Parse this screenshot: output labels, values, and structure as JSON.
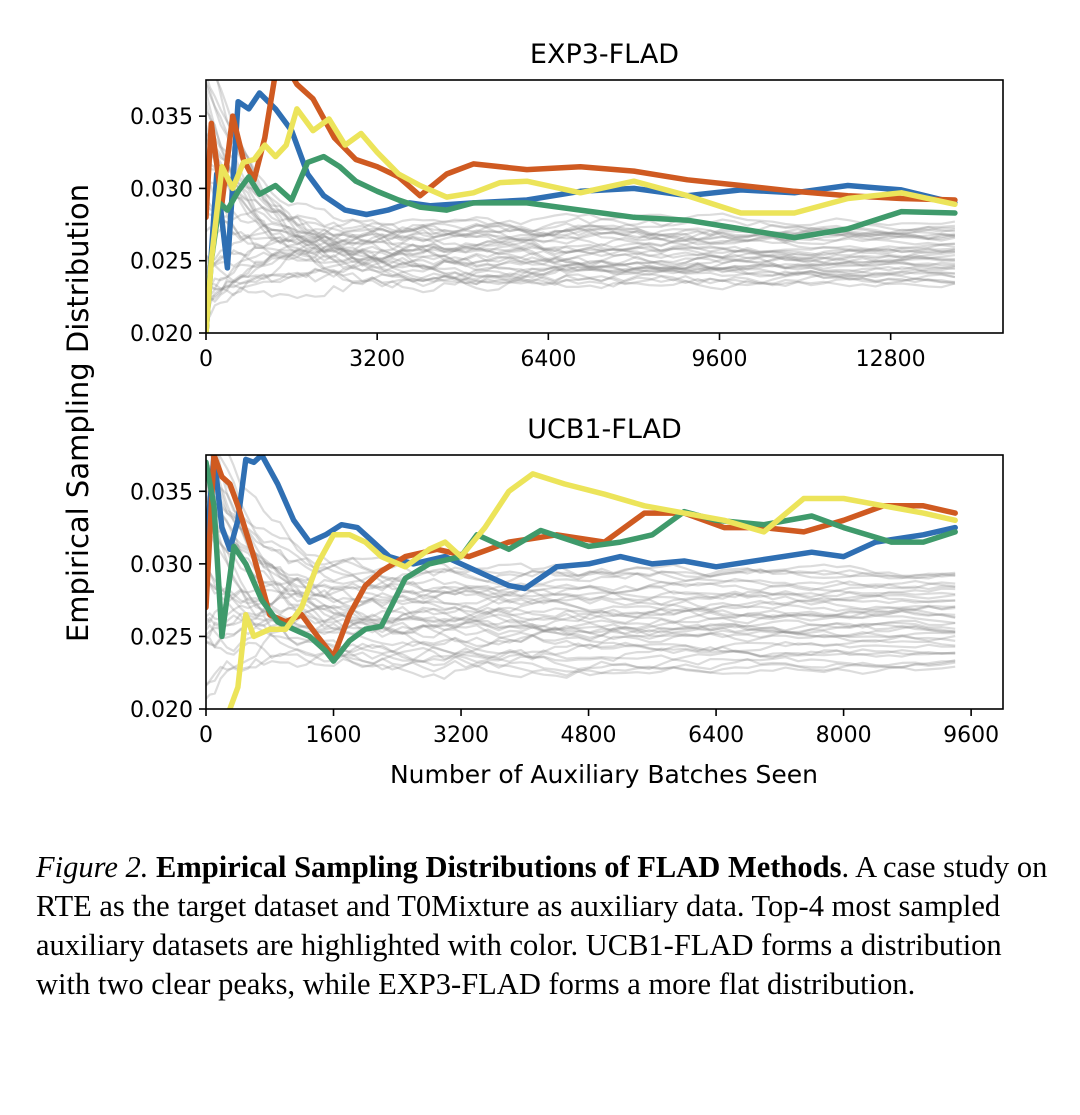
{
  "figure": {
    "ylabel": "Empirical Sampling Distribution",
    "xlabel": "Number of Auxiliary Batches Seen"
  },
  "caption": {
    "label": "Figure 2.",
    "title": "Empirical Sampling Distributions of FLAD Methods",
    "text": "A case study on RTE as the target dataset and T0Mixture as auxiliary data. Top-4 most sampled auxiliary datasets are highlighted with color. UCB1-FLAD forms a distribution with two clear peaks, while EXP3-FLAD forms a more flat distribution."
  },
  "colors": {
    "blue": "#2f6fb3",
    "orange": "#cf5a21",
    "green": "#3f9a6b",
    "yellow": "#ece45a",
    "gray": "#8c8c8c"
  },
  "chart_data": [
    {
      "type": "line",
      "title": "EXP3-FLAD",
      "xlabel": "",
      "ylabel": "Empirical Sampling Distribution",
      "xlim": [
        0,
        14900
      ],
      "ylim": [
        0.02,
        0.0375
      ],
      "xticks": [
        0,
        3200,
        6400,
        9600,
        12800
      ],
      "yticks": [
        0.02,
        0.025,
        0.03,
        0.035
      ],
      "xtick_labels": [
        "0",
        "3200",
        "6400",
        "9600",
        "12800"
      ],
      "ytick_labels": [
        "0.020",
        "0.025",
        "0.030",
        "0.035"
      ],
      "background_series": {
        "count": 36,
        "color": "gray",
        "x_end": 14000,
        "final_range": [
          0.0235,
          0.0275
        ]
      },
      "series": [
        {
          "name": "blue",
          "x": [
            0,
            200,
            400,
            600,
            800,
            1000,
            1300,
            1600,
            1900,
            2200,
            2600,
            3000,
            3400,
            3800,
            4200,
            5000,
            6000,
            7000,
            8000,
            9000,
            10000,
            11000,
            12000,
            13000,
            14000
          ],
          "y": [
            0.02,
            0.031,
            0.0245,
            0.036,
            0.0355,
            0.0366,
            0.0355,
            0.034,
            0.031,
            0.0295,
            0.0285,
            0.0282,
            0.0285,
            0.029,
            0.0288,
            0.029,
            0.0292,
            0.0298,
            0.03,
            0.0295,
            0.0299,
            0.0297,
            0.0302,
            0.0299,
            0.029
          ]
        },
        {
          "name": "orange",
          "x": [
            0,
            100,
            300,
            500,
            700,
            900,
            1100,
            1300,
            1500,
            1700,
            2000,
            2400,
            2800,
            3200,
            3600,
            4000,
            4500,
            5000,
            6000,
            7000,
            8000,
            9000,
            10000,
            11000,
            12000,
            13000,
            14000
          ],
          "y": [
            0.028,
            0.0345,
            0.029,
            0.035,
            0.032,
            0.0306,
            0.0335,
            0.038,
            0.0385,
            0.0372,
            0.0362,
            0.0335,
            0.032,
            0.0315,
            0.0308,
            0.0295,
            0.031,
            0.0317,
            0.0313,
            0.0315,
            0.0312,
            0.0306,
            0.0302,
            0.0298,
            0.0295,
            0.0293,
            0.0292
          ]
        },
        {
          "name": "green",
          "x": [
            0,
            100,
            250,
            400,
            600,
            800,
            1000,
            1300,
            1600,
            1900,
            2200,
            2500,
            2800,
            3200,
            3600,
            4000,
            4500,
            5000,
            6000,
            7000,
            8000,
            9000,
            10000,
            11000,
            12000,
            13000,
            14000
          ],
          "y": [
            0.02,
            0.025,
            0.029,
            0.0285,
            0.0298,
            0.0308,
            0.0296,
            0.0302,
            0.0292,
            0.0318,
            0.0322,
            0.0315,
            0.0305,
            0.0298,
            0.0292,
            0.0287,
            0.0285,
            0.029,
            0.029,
            0.0285,
            0.028,
            0.0278,
            0.0272,
            0.0266,
            0.0272,
            0.0284,
            0.0283
          ]
        },
        {
          "name": "yellow",
          "x": [
            0,
            100,
            300,
            500,
            700,
            900,
            1100,
            1300,
            1500,
            1700,
            2000,
            2300,
            2600,
            2900,
            3200,
            3600,
            4000,
            4500,
            5000,
            5500,
            6000,
            7000,
            8000,
            9000,
            10000,
            11000,
            12000,
            13000,
            14000
          ],
          "y": [
            0.02,
            0.025,
            0.0315,
            0.03,
            0.0318,
            0.032,
            0.033,
            0.0322,
            0.033,
            0.0355,
            0.034,
            0.0348,
            0.033,
            0.0338,
            0.0325,
            0.031,
            0.0302,
            0.0294,
            0.0297,
            0.0304,
            0.0305,
            0.0297,
            0.0305,
            0.0295,
            0.0283,
            0.0283,
            0.0293,
            0.0297,
            0.0289
          ]
        }
      ]
    },
    {
      "type": "line",
      "title": "UCB1-FLAD",
      "xlabel": "Number of Auxiliary Batches Seen",
      "ylabel": "Empirical Sampling Distribution",
      "xlim": [
        0,
        10000
      ],
      "ylim": [
        0.02,
        0.0375
      ],
      "xticks": [
        0,
        1600,
        3200,
        4800,
        6400,
        8000,
        9600
      ],
      "yticks": [
        0.02,
        0.025,
        0.03,
        0.035
      ],
      "xtick_labels": [
        "0",
        "1600",
        "3200",
        "4800",
        "6400",
        "8000",
        "9600"
      ],
      "ytick_labels": [
        "0.020",
        "0.025",
        "0.030",
        "0.035"
      ],
      "background_series": {
        "count": 36,
        "color": "gray",
        "x_end": 9400,
        "final_range": [
          0.023,
          0.0295
        ]
      },
      "series": [
        {
          "name": "blue",
          "x": [
            0,
            100,
            200,
            300,
            400,
            500,
            600,
            700,
            900,
            1100,
            1300,
            1500,
            1700,
            1900,
            2100,
            2300,
            2600,
            3000,
            3400,
            3800,
            4000,
            4400,
            4800,
            5200,
            5600,
            6000,
            6400,
            7000,
            7600,
            8000,
            8400,
            9000,
            9400
          ],
          "y": [
            0.031,
            0.0375,
            0.0325,
            0.031,
            0.033,
            0.0372,
            0.037,
            0.0375,
            0.0355,
            0.033,
            0.0315,
            0.032,
            0.0327,
            0.0325,
            0.0315,
            0.0305,
            0.03,
            0.0305,
            0.0295,
            0.0285,
            0.0283,
            0.0298,
            0.03,
            0.0305,
            0.03,
            0.0302,
            0.0298,
            0.0303,
            0.0308,
            0.0305,
            0.0315,
            0.032,
            0.0325
          ]
        },
        {
          "name": "orange",
          "x": [
            0,
            100,
            200,
            300,
            400,
            600,
            800,
            1000,
            1200,
            1400,
            1600,
            1800,
            2000,
            2200,
            2500,
            2900,
            3300,
            3800,
            4400,
            5000,
            5500,
            6000,
            6500,
            7000,
            7500,
            8000,
            8500,
            9000,
            9400
          ],
          "y": [
            0.027,
            0.0375,
            0.036,
            0.0355,
            0.034,
            0.0305,
            0.0265,
            0.026,
            0.0265,
            0.025,
            0.0236,
            0.0265,
            0.0285,
            0.0295,
            0.0305,
            0.031,
            0.0305,
            0.0315,
            0.032,
            0.0315,
            0.0335,
            0.0335,
            0.0325,
            0.0325,
            0.0322,
            0.033,
            0.034,
            0.034,
            0.0335
          ]
        },
        {
          "name": "green",
          "x": [
            0,
            100,
            200,
            350,
            500,
            700,
            900,
            1100,
            1300,
            1500,
            1600,
            1800,
            2000,
            2200,
            2500,
            2800,
            3200,
            3400,
            3800,
            4200,
            4800,
            5200,
            5600,
            6000,
            6400,
            7000,
            7600,
            8000,
            8600,
            9000,
            9400
          ],
          "y": [
            0.037,
            0.034,
            0.025,
            0.0312,
            0.03,
            0.0275,
            0.026,
            0.0255,
            0.025,
            0.024,
            0.0233,
            0.0247,
            0.0255,
            0.0257,
            0.029,
            0.03,
            0.0305,
            0.032,
            0.031,
            0.0323,
            0.0312,
            0.0315,
            0.032,
            0.0336,
            0.033,
            0.0327,
            0.0333,
            0.0325,
            0.0315,
            0.0315,
            0.0322
          ]
        },
        {
          "name": "yellow",
          "x": [
            300,
            400,
            500,
            600,
            800,
            1000,
            1200,
            1400,
            1600,
            1800,
            2000,
            2200,
            2500,
            2800,
            3000,
            3200,
            3500,
            3800,
            4100,
            4500,
            5000,
            5500,
            6000,
            6500,
            7000,
            7500,
            8000,
            8500,
            9000,
            9400
          ],
          "y": [
            0.02,
            0.0215,
            0.0265,
            0.025,
            0.0255,
            0.0255,
            0.027,
            0.03,
            0.032,
            0.032,
            0.0315,
            0.0305,
            0.0298,
            0.031,
            0.0315,
            0.0305,
            0.0325,
            0.035,
            0.0362,
            0.0355,
            0.0348,
            0.034,
            0.0335,
            0.033,
            0.0322,
            0.0345,
            0.0345,
            0.034,
            0.0335,
            0.033
          ]
        }
      ]
    }
  ]
}
